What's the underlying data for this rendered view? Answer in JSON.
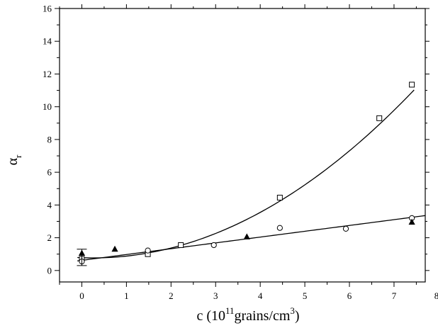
{
  "chart_data": {
    "type": "scatter",
    "xlabel": {
      "prefix": "c (10",
      "exponent": "11",
      "middle": "grains/cm",
      "exponent2": "3",
      "suffix": ")"
    },
    "ylabel": {
      "main": "α",
      "subscript": "r"
    },
    "xlim": [
      -0.5,
      7.7
    ],
    "ylim": [
      -0.7,
      16
    ],
    "xticks": [
      0,
      1,
      2,
      3,
      4,
      5,
      6,
      7
    ],
    "xtick_labels": [
      "0",
      "1",
      "2",
      "3",
      "4",
      "5",
      "6",
      "7"
    ],
    "extra_xtick_label": {
      "x": 8,
      "label": "8"
    },
    "yticks": [
      0,
      2,
      4,
      6,
      8,
      10,
      12,
      14,
      16
    ],
    "ytick_labels": [
      "0",
      "2",
      "4",
      "6",
      "8",
      "10",
      "12",
      "14",
      "16"
    ],
    "grid": false,
    "series": [
      {
        "marker": "square",
        "x": [
          0,
          1.48,
          2.22,
          4.44,
          6.67,
          7.4
        ],
        "y": [
          0.7,
          1.0,
          1.55,
          4.45,
          9.3,
          11.35
        ]
      },
      {
        "marker": "circle",
        "x": [
          0,
          1.48,
          2.96,
          4.44,
          5.92,
          7.4
        ],
        "y": [
          0.55,
          1.22,
          1.55,
          2.6,
          2.55,
          3.2
        ]
      },
      {
        "marker": "triangle",
        "x": [
          0,
          0.74,
          3.7,
          7.4
        ],
        "y": [
          1.05,
          1.3,
          2.05,
          2.95
        ]
      }
    ],
    "error_bar": {
      "x": 0,
      "y": 0.8,
      "err": 0.5
    },
    "fits": [
      {
        "kind": "quadratic",
        "coefficients": [
          0.78,
          -0.1,
          0.198
        ],
        "x_range": [
          -0.1,
          7.45
        ]
      },
      {
        "kind": "linear",
        "coefficients": [
          0.62,
          0.355
        ],
        "x_range": [
          -0.1,
          7.7
        ]
      }
    ]
  }
}
